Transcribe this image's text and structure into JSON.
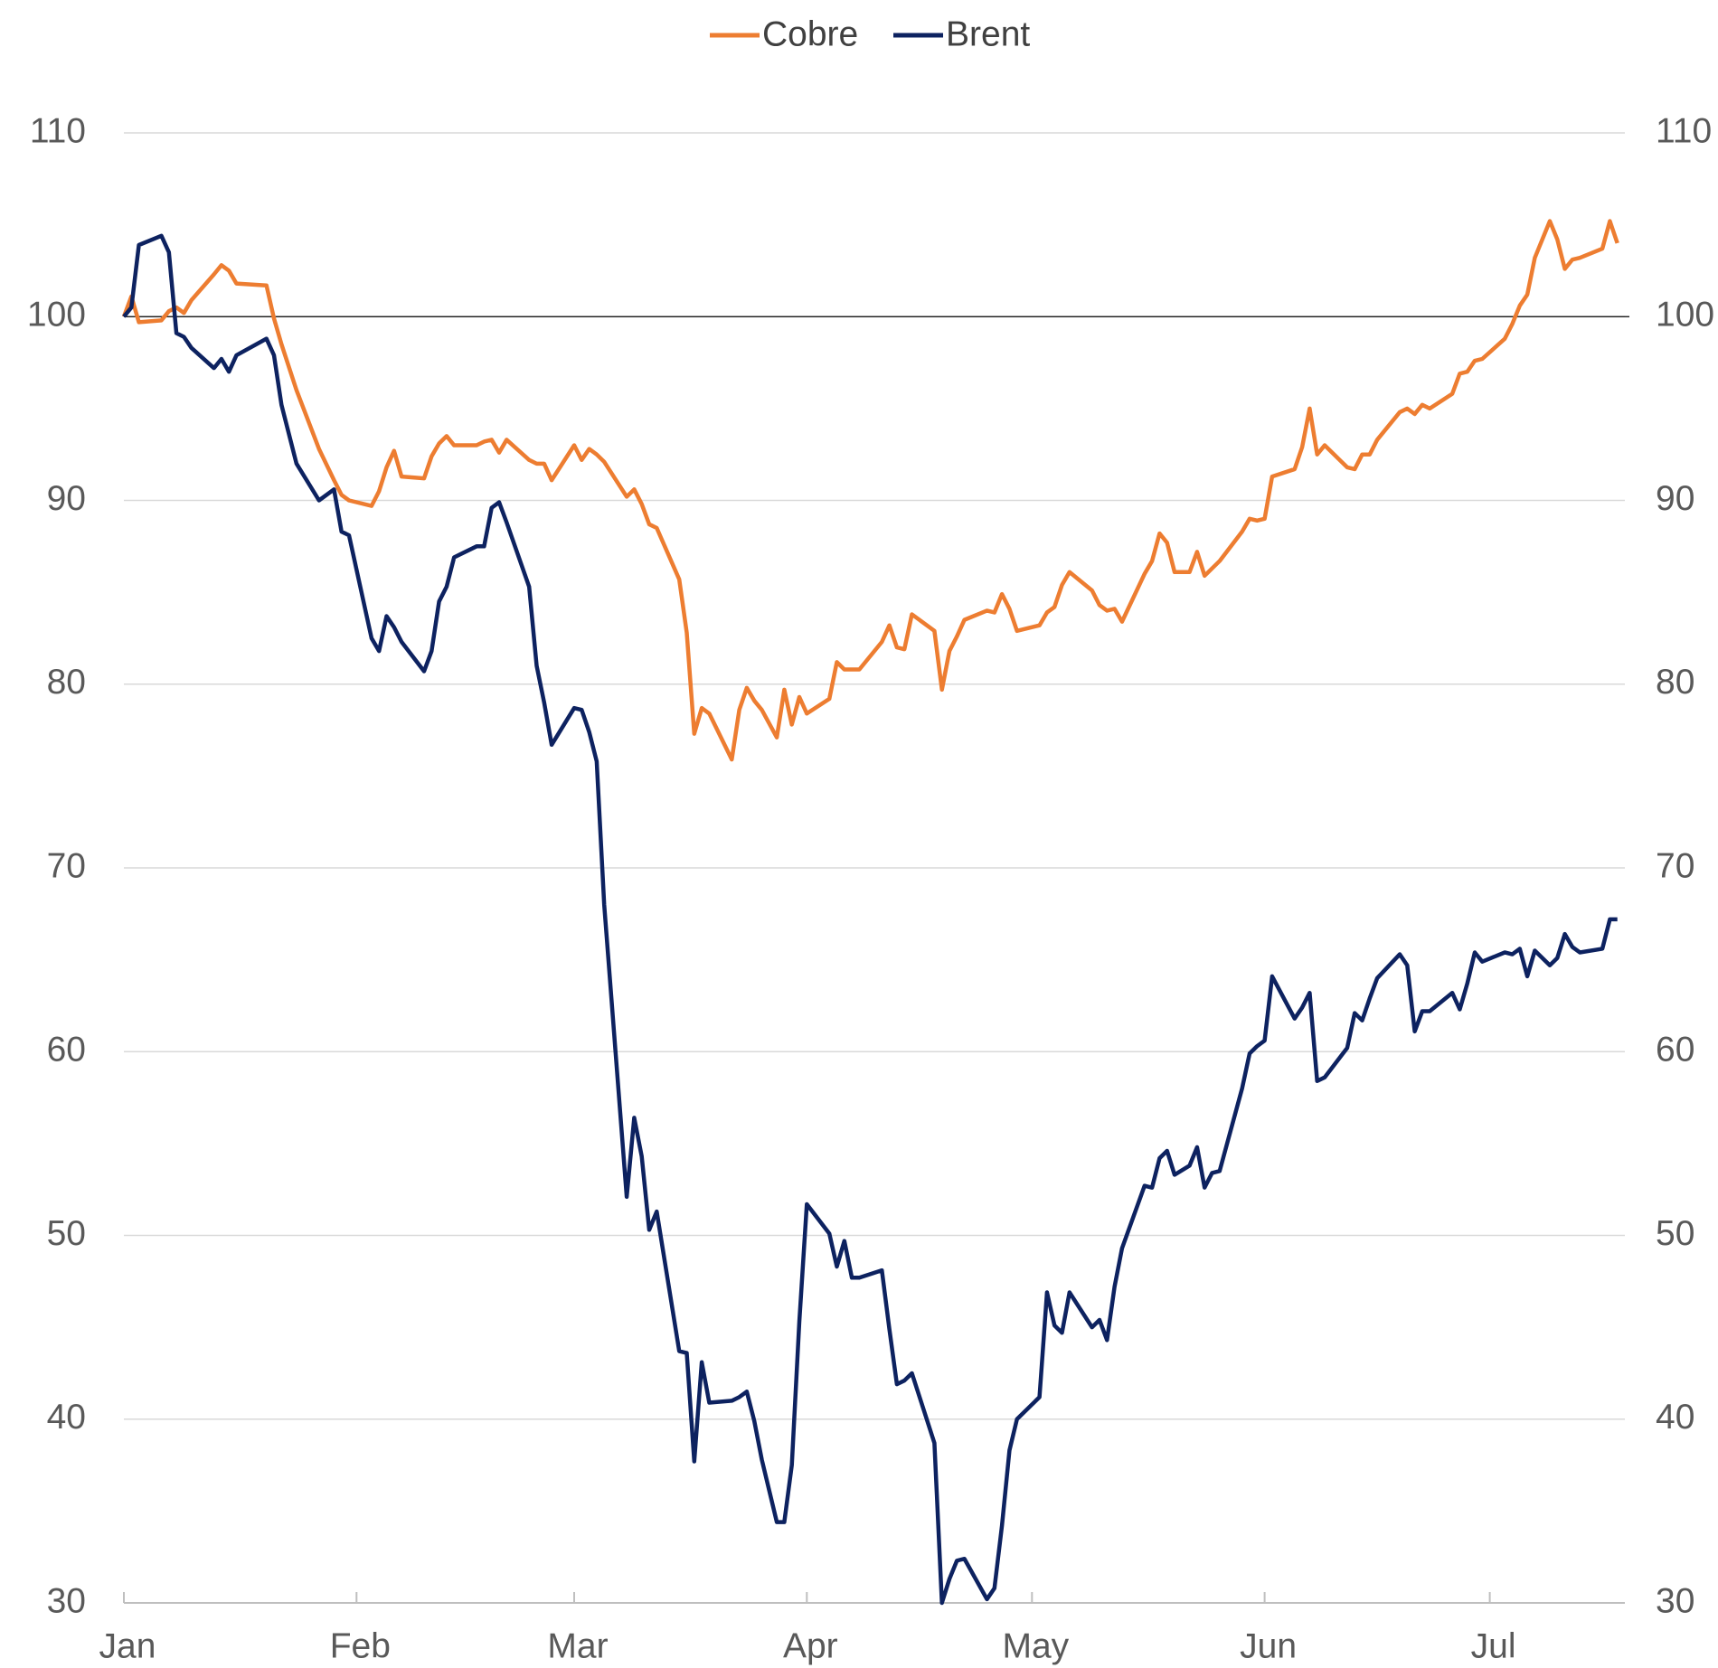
{
  "chart_data": {
    "type": "line",
    "x": [
      0,
      1,
      2,
      5,
      6,
      7,
      8,
      9,
      12,
      13,
      14,
      15,
      19,
      20,
      21,
      23,
      26,
      28,
      29,
      30,
      33,
      34,
      35,
      36,
      37,
      40,
      41,
      42,
      43,
      44,
      47,
      48,
      49,
      50,
      51,
      54,
      55,
      56,
      57,
      60,
      61,
      62,
      63,
      64,
      67,
      68,
      69,
      70,
      71,
      74,
      75,
      76,
      77,
      78,
      81,
      82,
      83,
      84,
      85,
      87,
      88,
      89,
      90,
      91,
      94,
      95,
      96,
      97,
      98,
      101,
      102,
      103,
      104,
      105,
      108,
      109,
      110,
      111,
      112,
      115,
      116,
      117,
      118,
      119,
      122,
      123,
      124,
      125,
      126,
      129,
      130,
      131,
      132,
      133,
      136,
      137,
      138,
      139,
      140,
      142,
      143,
      144,
      145,
      146,
      149,
      150,
      151,
      152,
      153,
      156,
      157,
      158,
      159,
      160,
      163,
      164,
      165,
      166,
      167,
      170,
      171,
      172,
      173,
      174,
      177,
      178,
      179,
      180,
      181,
      184,
      185,
      186,
      187,
      188,
      190,
      191,
      192,
      193,
      194,
      197,
      198,
      199
    ],
    "series": [
      {
        "name": "Cobre",
        "color": "#ed7d31",
        "values": [
          100,
          101.1,
          99.7,
          99.8,
          100.3,
          100.5,
          100.2,
          100.9,
          102.3,
          102.8,
          102.5,
          101.8,
          101.7,
          99.9,
          98.5,
          96,
          92.8,
          91.1,
          90.3,
          90,
          89.7,
          90.5,
          91.8,
          92.7,
          91.3,
          91.2,
          92.4,
          93.1,
          93.5,
          93,
          93,
          93.2,
          93.3,
          92.6,
          93.3,
          92.2,
          92,
          92,
          91.1,
          93,
          92.2,
          92.8,
          92.5,
          92.1,
          90.2,
          90.6,
          89.8,
          88.7,
          88.5,
          85.7,
          82.8,
          77.3,
          78.7,
          78.4,
          75.9,
          78.6,
          79.8,
          79.1,
          78.6,
          77.1,
          79.7,
          77.8,
          79.3,
          78.4,
          79.2,
          81.2,
          80.8,
          80.8,
          80.8,
          82.3,
          83.2,
          82,
          81.9,
          83.8,
          82.9,
          79.7,
          81.8,
          82.6,
          83.5,
          84,
          83.9,
          84.9,
          84.1,
          82.9,
          83.2,
          83.9,
          84.2,
          85.4,
          86.1,
          85.1,
          84.3,
          84,
          84.1,
          83.4,
          86,
          86.7,
          88.2,
          87.7,
          86.1,
          86.1,
          87.2,
          85.9,
          86.3,
          86.7,
          88.3,
          89,
          88.9,
          89,
          91.3,
          91.7,
          92.9,
          95,
          92.5,
          93,
          91.8,
          91.7,
          92.5,
          92.5,
          93.3,
          94.8,
          95,
          94.7,
          95.2,
          95,
          95.8,
          96.9,
          97,
          97.6,
          97.7,
          98.8,
          99.6,
          100.6,
          101.2,
          103.2,
          105.2,
          104.2,
          102.6,
          103.1,
          103.2,
          103.7,
          105.2,
          104
        ]
      },
      {
        "name": "Brent",
        "color": "#0d2260",
        "values": [
          100,
          100.5,
          103.9,
          104.4,
          103.5,
          99.1,
          98.9,
          98.3,
          97.2,
          97.7,
          97,
          97.9,
          98.8,
          97.9,
          95.2,
          92,
          90,
          90.6,
          88.3,
          88.1,
          82.5,
          81.8,
          83.7,
          83.1,
          82.3,
          80.7,
          81.8,
          84.5,
          85.3,
          86.9,
          87.5,
          87.5,
          89.6,
          89.9,
          88.8,
          85.3,
          81,
          79,
          76.7,
          78.7,
          78.6,
          77.4,
          75.8,
          68,
          52.1,
          56.4,
          54.3,
          50.3,
          51.3,
          43.7,
          43.6,
          37.7,
          43.1,
          40.9,
          41,
          41.2,
          41.5,
          39.9,
          37.8,
          34.4,
          34.4,
          37.5,
          45.3,
          51.7,
          50.1,
          48.3,
          49.7,
          47.7,
          47.7,
          48.1,
          44.9,
          41.9,
          42.1,
          42.5,
          38.7,
          30,
          31.3,
          32.3,
          32.4,
          30.2,
          30.8,
          34.2,
          38.3,
          40,
          41.2,
          46.9,
          45.1,
          44.7,
          46.9,
          45,
          45.4,
          44.3,
          47.2,
          49.3,
          52.7,
          52.6,
          54.2,
          54.6,
          53.3,
          53.8,
          54.8,
          52.6,
          53.4,
          53.5,
          58,
          59.9,
          60.3,
          60.6,
          64.1,
          61.8,
          62.4,
          63.2,
          58.4,
          58.6,
          60.2,
          62.1,
          61.7,
          62.9,
          64,
          65.3,
          64.7,
          61.1,
          62.2,
          62.2,
          63.2,
          62.3,
          63.7,
          65.4,
          64.9,
          65.4,
          65.3,
          65.6,
          64.1,
          65.5,
          64.7,
          65.1,
          66.4,
          65.7,
          65.4,
          65.6,
          67.2,
          67.2
        ]
      }
    ],
    "xlim": [
      0,
      200
    ],
    "xticks": [
      {
        "value": 0,
        "label": "Jan"
      },
      {
        "value": 31,
        "label": "Feb"
      },
      {
        "value": 60,
        "label": "Mar"
      },
      {
        "value": 91,
        "label": "Apr"
      },
      {
        "value": 121,
        "label": "May"
      },
      {
        "value": 152,
        "label": "Jun"
      },
      {
        "value": 182,
        "label": "Jul"
      }
    ],
    "ylim": [
      30,
      110
    ],
    "yticks": [
      30,
      40,
      50,
      60,
      70,
      80,
      90,
      100,
      110
    ],
    "y2lim": [
      30,
      110
    ],
    "y2ticks": [
      30,
      40,
      50,
      60,
      70,
      80,
      90,
      100,
      110
    ],
    "reference_line": 100,
    "grid": true,
    "legend": "top"
  }
}
